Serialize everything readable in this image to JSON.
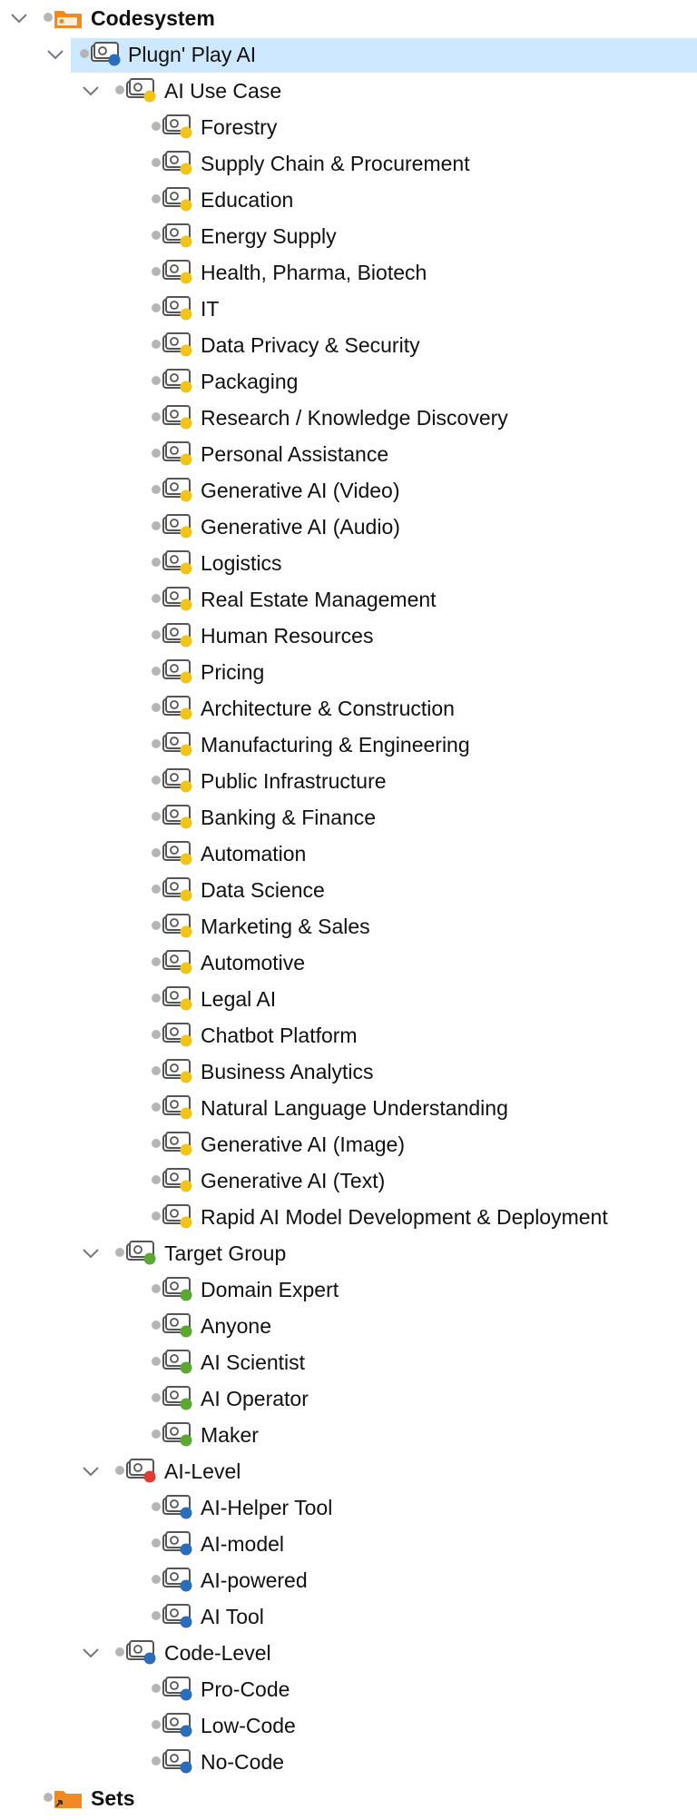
{
  "tree": {
    "root": {
      "label": "Codesystem"
    },
    "system": {
      "label": "Plugn' Play AI"
    },
    "groups": [
      {
        "label": "AI Use Case",
        "color": "#f0c419",
        "children": [
          "Forestry",
          "Supply Chain & Procurement",
          "Education",
          "Energy Supply",
          "Health, Pharma, Biotech",
          "IT",
          "Data Privacy & Security",
          "Packaging",
          "Research / Knowledge Discovery",
          "Personal Assistance",
          "Generative AI (Video)",
          "Generative AI (Audio)",
          "Logistics",
          "Real Estate Management",
          "Human Resources",
          "Pricing",
          "Architecture & Construction",
          "Manufacturing & Engineering",
          "Public Infrastructure",
          "Banking & Finance",
          "Automation",
          "Data Science",
          "Marketing & Sales",
          "Automotive",
          "Legal AI",
          "Chatbot Platform",
          "Business Analytics",
          "Natural Language Understanding",
          "Generative AI (Image)",
          "Generative AI (Text)",
          "Rapid AI Model Development & Deployment"
        ]
      },
      {
        "label": "Target Group",
        "color": "#5aa832",
        "children": [
          "Domain Expert",
          "Anyone",
          "AI Scientist",
          "AI Operator",
          "Maker"
        ]
      },
      {
        "label": "AI-Level",
        "color": "#e03c31",
        "child_color": "#2a6ebb",
        "children": [
          "AI-Helper Tool",
          "AI-model",
          "AI-powered",
          "AI Tool"
        ]
      },
      {
        "label": "Code-Level",
        "color": "#2a6ebb",
        "children": [
          "Pro-Code",
          "Low-Code",
          "No-Code"
        ]
      }
    ],
    "sets": {
      "label": "Sets"
    }
  },
  "colors": {
    "selection": "#cde8ff",
    "folder": "#f08a24",
    "system_dot": "#2a6ebb"
  }
}
